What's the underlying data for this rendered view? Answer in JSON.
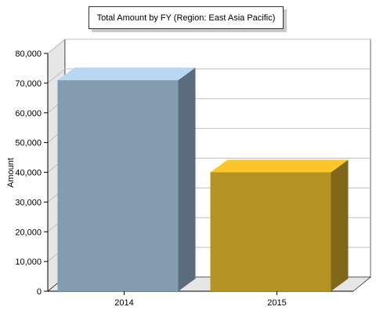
{
  "chart_data": {
    "type": "bar",
    "title": "Total Amount by FY (Region: East Asia Pacific)",
    "xlabel": "",
    "ylabel": "Amount",
    "categories": [
      "2014",
      "2015"
    ],
    "values": [
      71000,
      40000
    ],
    "ylim": [
      0,
      80000
    ],
    "yticks": [
      0,
      10000,
      20000,
      30000,
      40000,
      50000,
      60000,
      70000,
      80000
    ],
    "ytick_labels": [
      "0",
      "10,000",
      "20,000",
      "30,000",
      "40,000",
      "50,000",
      "60,000",
      "70,000",
      "80,000"
    ],
    "grid": true,
    "legend": "none",
    "colors": {
      "bars": [
        {
          "front": "#849caf",
          "side": "#5b6d7c",
          "top": "#b8d7f2"
        },
        {
          "front": "#b59322",
          "side": "#806818",
          "top": "#fcc528"
        }
      ],
      "grid": "#c0c0c0",
      "wall_left": "#e6e6e6",
      "floor": "#e6e6e6"
    }
  }
}
